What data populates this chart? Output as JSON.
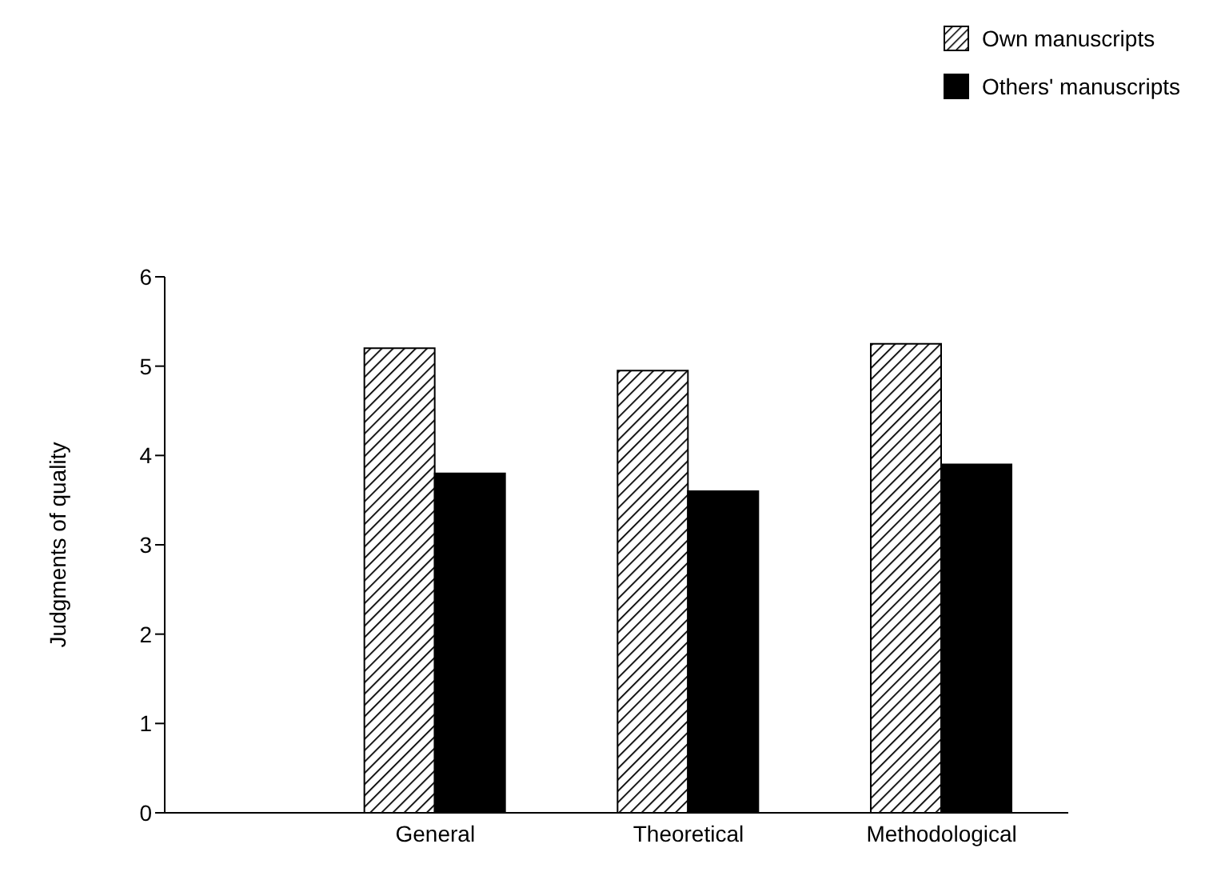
{
  "chart_data": {
    "type": "bar",
    "ylabel": "Judgments of quality",
    "categories": [
      "General",
      "Theoretical",
      "Methodological"
    ],
    "series": [
      {
        "name": "Own manuscripts",
        "color": "#000000",
        "values": [
          5.2,
          4.95,
          5.25
        ]
      },
      {
        "name": "Others' manuscripts",
        "color": "#000000",
        "values": [
          3.8,
          3.6,
          3.9
        ]
      }
    ],
    "ylim": [
      0,
      6
    ],
    "yticks": [
      0,
      1,
      2,
      3,
      4,
      5,
      6
    ],
    "grid": false,
    "legend": "top right"
  }
}
